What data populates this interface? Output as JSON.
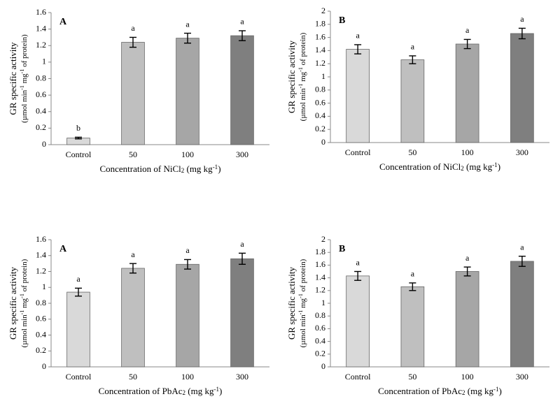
{
  "chart_data": [
    {
      "type": "bar",
      "panel": "A",
      "y_label": "GR specific activity",
      "y_label_unit": [
        "(µmol min",
        "-1",
        " mg",
        "-1",
        " of protein)"
      ],
      "x_label": [
        "Concentration of NiCl",
        "2",
        " (mg kg",
        "-1",
        ")"
      ],
      "x_label_style": [
        "normal",
        "sub",
        "normal",
        "sup",
        "normal"
      ],
      "categories": [
        "Control",
        "50",
        "100",
        "300"
      ],
      "values": [
        0.08,
        1.24,
        1.29,
        1.32
      ],
      "errors": [
        0.01,
        0.06,
        0.06,
        0.06
      ],
      "annotations": [
        "b",
        "a",
        "a",
        "a"
      ],
      "colors": [
        "#d9d9d9",
        "#bfbfbf",
        "#a6a6a6",
        "#7f7f7f"
      ],
      "ylim": [
        0,
        1.6
      ],
      "yticks": [
        0,
        0.2,
        0.4,
        0.6,
        0.8,
        1,
        1.2,
        1.4,
        1.6
      ]
    },
    {
      "type": "bar",
      "panel": "B",
      "y_label": "GR specific activity",
      "y_label_unit": [
        "(µmol min",
        "-1",
        " mg",
        "-1",
        " of protein)"
      ],
      "x_label": [
        "Concentration of NiCl",
        "2",
        " (mg kg",
        "-1",
        ")"
      ],
      "x_label_style": [
        "normal",
        "sub",
        "normal",
        "sup",
        "normal"
      ],
      "categories": [
        "Control",
        "50",
        "100",
        "300"
      ],
      "values": [
        1.42,
        1.26,
        1.5,
        1.66
      ],
      "errors": [
        0.07,
        0.06,
        0.07,
        0.08
      ],
      "annotations": [
        "a",
        "a",
        "a",
        "a"
      ],
      "colors": [
        "#d9d9d9",
        "#bfbfbf",
        "#a6a6a6",
        "#7f7f7f"
      ],
      "ylim": [
        0,
        2
      ],
      "yticks": [
        0,
        0.2,
        0.4,
        0.6,
        0.8,
        1,
        1.2,
        1.4,
        1.6,
        1.8,
        2
      ]
    },
    {
      "type": "bar",
      "panel": "A",
      "y_label": "GR specific activity",
      "y_label_unit": [
        "(µmol min",
        "-1",
        " mg",
        "-1",
        " of protein)"
      ],
      "x_label": [
        "Concentration of PbAc",
        "2",
        " (mg kg",
        "-1",
        ")"
      ],
      "x_label_style": [
        "normal",
        "sub",
        "normal",
        "sup",
        "normal"
      ],
      "categories": [
        "Control",
        "50",
        "100",
        "300"
      ],
      "values": [
        0.94,
        1.24,
        1.29,
        1.36
      ],
      "errors": [
        0.05,
        0.06,
        0.06,
        0.07
      ],
      "annotations": [
        "a",
        "a",
        "a",
        "a"
      ],
      "colors": [
        "#d9d9d9",
        "#bfbfbf",
        "#a6a6a6",
        "#7f7f7f"
      ],
      "ylim": [
        0,
        1.6
      ],
      "yticks": [
        0,
        0.2,
        0.4,
        0.6,
        0.8,
        1,
        1.2,
        1.4,
        1.6
      ]
    },
    {
      "type": "bar",
      "panel": "B",
      "y_label": "GR specific activity",
      "y_label_unit": [
        "(µmol min",
        "-1",
        " mg",
        "-1",
        " of protein)"
      ],
      "x_label": [
        "Concentration of PbAc",
        "2",
        " (mg kg",
        "-1",
        ")"
      ],
      "x_label_style": [
        "normal",
        "sub",
        "normal",
        "sup",
        "normal"
      ],
      "categories": [
        "Control",
        "50",
        "100",
        "300"
      ],
      "values": [
        1.43,
        1.26,
        1.5,
        1.66
      ],
      "errors": [
        0.07,
        0.06,
        0.07,
        0.08
      ],
      "annotations": [
        "a",
        "a",
        "a",
        "a"
      ],
      "colors": [
        "#d9d9d9",
        "#bfbfbf",
        "#a6a6a6",
        "#7f7f7f"
      ],
      "ylim": [
        0,
        2
      ],
      "yticks": [
        0,
        0.2,
        0.4,
        0.6,
        0.8,
        1,
        1.2,
        1.4,
        1.6,
        1.8,
        2
      ]
    }
  ]
}
